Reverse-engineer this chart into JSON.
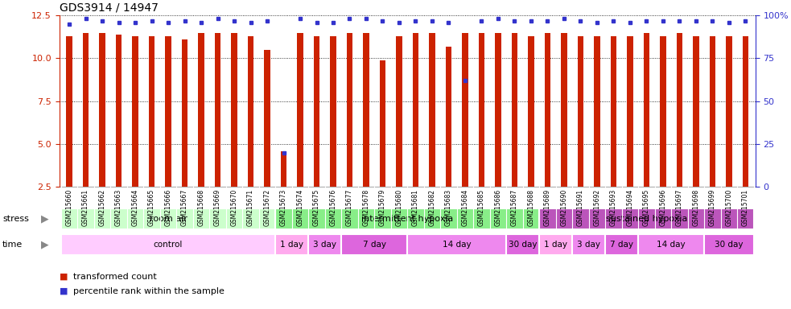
{
  "title": "GDS3914 / 14947",
  "samples": [
    "GSM215660",
    "GSM215661",
    "GSM215662",
    "GSM215663",
    "GSM215664",
    "GSM215665",
    "GSM215666",
    "GSM215667",
    "GSM215668",
    "GSM215669",
    "GSM215670",
    "GSM215671",
    "GSM215672",
    "GSM215673",
    "GSM215674",
    "GSM215675",
    "GSM215676",
    "GSM215677",
    "GSM215678",
    "GSM215679",
    "GSM215680",
    "GSM215681",
    "GSM215682",
    "GSM215683",
    "GSM215684",
    "GSM215685",
    "GSM215686",
    "GSM215687",
    "GSM215688",
    "GSM215689",
    "GSM215690",
    "GSM215691",
    "GSM215692",
    "GSM215693",
    "GSM215694",
    "GSM215695",
    "GSM215696",
    "GSM215697",
    "GSM215698",
    "GSM215699",
    "GSM215700",
    "GSM215701"
  ],
  "bar_values": [
    11.3,
    11.5,
    11.5,
    11.4,
    11.3,
    11.3,
    11.3,
    11.1,
    11.5,
    11.5,
    11.5,
    11.3,
    10.5,
    4.6,
    11.5,
    11.3,
    11.3,
    11.5,
    11.5,
    9.9,
    11.3,
    11.5,
    11.5,
    10.7,
    11.5,
    11.5,
    11.5,
    11.5,
    11.3,
    11.5,
    11.5,
    11.3,
    11.3,
    11.3,
    11.3,
    11.5,
    11.3,
    11.5,
    11.3,
    11.3,
    11.3,
    11.3
  ],
  "percentile_values": [
    95,
    98,
    97,
    96,
    96,
    97,
    96,
    97,
    96,
    98,
    97,
    96,
    97,
    20,
    98,
    96,
    96,
    98,
    98,
    97,
    96,
    97,
    97,
    96,
    62,
    97,
    98,
    97,
    97,
    97,
    98,
    97,
    96,
    97,
    96,
    97,
    97,
    97,
    97,
    97,
    96,
    97
  ],
  "ymin": 2.5,
  "ymax": 12.5,
  "yticks": [
    2.5,
    5.0,
    7.5,
    10.0,
    12.5
  ],
  "right_yticks": [
    0,
    25,
    50,
    75,
    100
  ],
  "bar_color": "#cc2200",
  "marker_color": "#3333cc",
  "stress_groups": [
    {
      "label": "room air",
      "start": 0,
      "end": 13,
      "color": "#ccffcc"
    },
    {
      "label": "intermittent hypoxia",
      "start": 13,
      "end": 29,
      "color": "#88ee88"
    },
    {
      "label": "sustained hypoxia",
      "start": 29,
      "end": 42,
      "color": "#bb55bb"
    }
  ],
  "time_groups": [
    {
      "label": "control",
      "start": 0,
      "end": 13,
      "color": "#ffccff"
    },
    {
      "label": "1 day",
      "start": 13,
      "end": 15,
      "color": "#ffaaee"
    },
    {
      "label": "3 day",
      "start": 15,
      "end": 17,
      "color": "#ee88ee"
    },
    {
      "label": "7 day",
      "start": 17,
      "end": 21,
      "color": "#dd66dd"
    },
    {
      "label": "14 day",
      "start": 21,
      "end": 27,
      "color": "#ee88ee"
    },
    {
      "label": "30 day",
      "start": 27,
      "end": 29,
      "color": "#dd66dd"
    },
    {
      "label": "1 day",
      "start": 29,
      "end": 31,
      "color": "#ffaaee"
    },
    {
      "label": "3 day",
      "start": 31,
      "end": 33,
      "color": "#ee88ee"
    },
    {
      "label": "7 day",
      "start": 33,
      "end": 35,
      "color": "#dd66dd"
    },
    {
      "label": "14 day",
      "start": 35,
      "end": 39,
      "color": "#ee88ee"
    },
    {
      "label": "30 day",
      "start": 39,
      "end": 42,
      "color": "#dd66dd"
    }
  ],
  "legend_red_label": "transformed count",
  "legend_blue_label": "percentile rank within the sample",
  "bg_color": "#ffffff",
  "xtick_bg": "#dddddd"
}
